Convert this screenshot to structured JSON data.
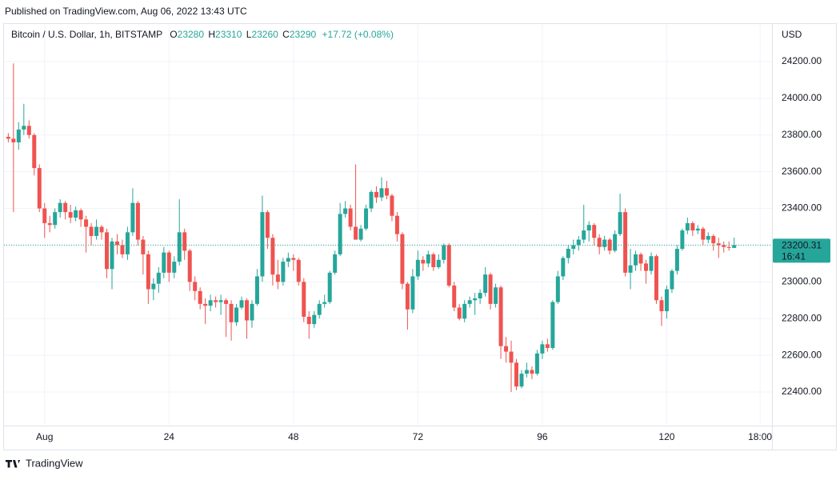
{
  "header": {
    "published": "Published on TradingView.com, Aug 06, 2022 13:43 UTC"
  },
  "chart_data": {
    "type": "candlestick",
    "title": "Bitcoin / U.S. Dollar, 1h, BITSTAMP",
    "ohlc_labels": [
      "O",
      "H",
      "L",
      "C"
    ],
    "change": "+17.72 (+0.08%)",
    "y_axis_label": "USD",
    "countdown": "16:41",
    "up_color": "#26a69a",
    "down_color": "#ef5350",
    "grid": true,
    "xlim": [
      -8.6,
      140.3
    ],
    "ylim": [
      22217,
      24383
    ],
    "xticks": [
      {
        "value": 0,
        "label": "Aug"
      },
      24,
      48,
      72,
      96,
      120,
      {
        "value": 138,
        "label": "18:00"
      }
    ],
    "yticks": [
      {
        "value": 22400,
        "label": "22400.00"
      },
      {
        "value": 22600,
        "label": "22600.00"
      },
      {
        "value": 22800,
        "label": "22800.00"
      },
      {
        "value": 23000,
        "label": "23000.00"
      },
      {
        "value": 23200,
        "label": "23200.00"
      },
      {
        "value": 23400,
        "label": "23400.00"
      },
      {
        "value": 23600,
        "label": "23600.00"
      },
      {
        "value": 23800,
        "label": "23800.00"
      },
      {
        "value": 24000,
        "label": "24000.00"
      },
      {
        "value": 24200,
        "label": "24200.00"
      }
    ],
    "x": [
      -7,
      -6,
      -5,
      -4,
      -3,
      -2,
      -1,
      0,
      1,
      2,
      3,
      4,
      5,
      6,
      7,
      8,
      9,
      10,
      11,
      12,
      13,
      14,
      15,
      16,
      17,
      18,
      19,
      20,
      21,
      22,
      23,
      24,
      25,
      26,
      27,
      28,
      29,
      30,
      31,
      32,
      33,
      34,
      35,
      36,
      37,
      38,
      39,
      40,
      41,
      42,
      43,
      44,
      45,
      46,
      47,
      48,
      49,
      50,
      51,
      52,
      53,
      54,
      55,
      56,
      57,
      58,
      59,
      60,
      61,
      62,
      63,
      64,
      65,
      66,
      67,
      68,
      69,
      70,
      71,
      72,
      73,
      74,
      75,
      76,
      77,
      78,
      79,
      80,
      81,
      82,
      83,
      84,
      85,
      86,
      87,
      88,
      89,
      90,
      91,
      92,
      93,
      94,
      95,
      96,
      97,
      98,
      99,
      100,
      101,
      102,
      103,
      104,
      105,
      106,
      107,
      108,
      109,
      110,
      111,
      112,
      113,
      114,
      115,
      116,
      117,
      118,
      119,
      120,
      121,
      122,
      123,
      124,
      125,
      126,
      127,
      128,
      129,
      130,
      131,
      132,
      133
    ],
    "candles": [
      [
        23790,
        23810,
        23760,
        23780
      ],
      [
        23780,
        24190,
        23380,
        23760
      ],
      [
        23760,
        23870,
        23720,
        23830
      ],
      [
        23830,
        23970,
        23800,
        23850
      ],
      [
        23850,
        23880,
        23780,
        23800
      ],
      [
        23800,
        23810,
        23580,
        23620
      ],
      [
        23620,
        23640,
        23380,
        23400
      ],
      [
        23400,
        23430,
        23240,
        23320
      ],
      [
        23320,
        23360,
        23270,
        23310
      ],
      [
        23310,
        23400,
        23290,
        23380
      ],
      [
        23380,
        23450,
        23350,
        23430
      ],
      [
        23430,
        23440,
        23340,
        23380
      ],
      [
        23380,
        23420,
        23320,
        23350
      ],
      [
        23350,
        23410,
        23330,
        23390
      ],
      [
        23390,
        23400,
        23300,
        23340
      ],
      [
        23340,
        23360,
        23160,
        23300
      ],
      [
        23300,
        23320,
        23200,
        23250
      ],
      [
        23250,
        23340,
        23230,
        23300
      ],
      [
        23300,
        23310,
        23230,
        23270
      ],
      [
        23270,
        23290,
        23020,
        23070
      ],
      [
        23070,
        23240,
        22960,
        23220
      ],
      [
        23220,
        23260,
        23150,
        23200
      ],
      [
        23200,
        23230,
        23130,
        23150
      ],
      [
        23150,
        23300,
        23120,
        23270
      ],
      [
        23270,
        23510,
        23250,
        23430
      ],
      [
        23430,
        23440,
        23200,
        23230
      ],
      [
        23230,
        23250,
        23040,
        23150
      ],
      [
        23150,
        23170,
        22880,
        22960
      ],
      [
        22960,
        23020,
        22900,
        22990
      ],
      [
        22990,
        23080,
        22940,
        23050
      ],
      [
        23050,
        23190,
        23020,
        23160
      ],
      [
        23160,
        23170,
        23000,
        23050
      ],
      [
        23050,
        23140,
        23020,
        23110
      ],
      [
        23110,
        23450,
        23090,
        23270
      ],
      [
        23270,
        23290,
        23120,
        23170
      ],
      [
        23170,
        23180,
        22950,
        23000
      ],
      [
        23000,
        23030,
        22900,
        22950
      ],
      [
        22950,
        22970,
        22850,
        22880
      ],
      [
        22880,
        22910,
        22770,
        22870
      ],
      [
        22870,
        22930,
        22840,
        22900
      ],
      [
        22900,
        22920,
        22860,
        22890
      ],
      [
        22890,
        22930,
        22820,
        22900
      ],
      [
        22900,
        22910,
        22700,
        22880
      ],
      [
        22880,
        22900,
        22680,
        22780
      ],
      [
        22780,
        22880,
        22760,
        22860
      ],
      [
        22860,
        22920,
        22850,
        22900
      ],
      [
        22900,
        22910,
        22690,
        22790
      ],
      [
        22790,
        22900,
        22750,
        22880
      ],
      [
        22880,
        23070,
        22870,
        23030
      ],
      [
        23030,
        23470,
        23000,
        23380
      ],
      [
        23380,
        23390,
        23180,
        23240
      ],
      [
        23240,
        23260,
        22980,
        23040
      ],
      [
        23040,
        23120,
        22960,
        23000
      ],
      [
        23000,
        23130,
        22980,
        23110
      ],
      [
        23110,
        23160,
        23080,
        23130
      ],
      [
        23130,
        23150,
        23060,
        23120
      ],
      [
        23120,
        23130,
        22980,
        23000
      ],
      [
        23000,
        23020,
        22780,
        22810
      ],
      [
        22810,
        22840,
        22690,
        22770
      ],
      [
        22770,
        22840,
        22750,
        22820
      ],
      [
        22820,
        22900,
        22800,
        22880
      ],
      [
        22880,
        22930,
        22860,
        22890
      ],
      [
        22890,
        23060,
        22880,
        23050
      ],
      [
        23050,
        23170,
        23040,
        23150
      ],
      [
        23150,
        23430,
        23140,
        23370
      ],
      [
        23370,
        23440,
        23350,
        23400
      ],
      [
        23400,
        23420,
        23280,
        23300
      ],
      [
        23300,
        23640,
        23230,
        23230
      ],
      [
        23230,
        23310,
        23220,
        23290
      ],
      [
        23290,
        23420,
        23280,
        23400
      ],
      [
        23400,
        23500,
        23380,
        23490
      ],
      [
        23490,
        23520,
        23430,
        23460
      ],
      [
        23460,
        23570,
        23440,
        23510
      ],
      [
        23510,
        23550,
        23450,
        23470
      ],
      [
        23470,
        23480,
        23330,
        23360
      ],
      [
        23360,
        23380,
        23220,
        23260
      ],
      [
        23260,
        23270,
        22960,
        22990
      ],
      [
        22990,
        23000,
        22740,
        22850
      ],
      [
        22850,
        23070,
        22830,
        23030
      ],
      [
        23030,
        23170,
        23010,
        23120
      ],
      [
        23120,
        23140,
        23060,
        23100
      ],
      [
        23100,
        23170,
        23080,
        23150
      ],
      [
        23150,
        23160,
        23060,
        23080
      ],
      [
        23080,
        23150,
        23070,
        23120
      ],
      [
        23120,
        23210,
        23100,
        23200
      ],
      [
        23200,
        23210,
        22970,
        22980
      ],
      [
        22980,
        23000,
        22840,
        22860
      ],
      [
        22860,
        22880,
        22790,
        22800
      ],
      [
        22800,
        22900,
        22780,
        22880
      ],
      [
        22880,
        22920,
        22860,
        22900
      ],
      [
        22900,
        22940,
        22820,
        22910
      ],
      [
        22910,
        22960,
        22880,
        22940
      ],
      [
        22940,
        23080,
        22920,
        23040
      ],
      [
        23040,
        23050,
        22850,
        22880
      ],
      [
        22880,
        22990,
        22860,
        22970
      ],
      [
        22970,
        22980,
        22580,
        22650
      ],
      [
        22650,
        22700,
        22560,
        22620
      ],
      [
        22620,
        22680,
        22400,
        22560
      ],
      [
        22560,
        22580,
        22410,
        22430
      ],
      [
        22430,
        22520,
        22420,
        22500
      ],
      [
        22500,
        22560,
        22480,
        22520
      ],
      [
        22520,
        22540,
        22470,
        22500
      ],
      [
        22500,
        22630,
        22490,
        22610
      ],
      [
        22610,
        22680,
        22580,
        22660
      ],
      [
        22660,
        22690,
        22620,
        22640
      ],
      [
        22640,
        22900,
        22630,
        22890
      ],
      [
        22890,
        23060,
        22880,
        23030
      ],
      [
        23030,
        23140,
        23010,
        23130
      ],
      [
        23130,
        23200,
        23100,
        23180
      ],
      [
        23180,
        23230,
        23150,
        23200
      ],
      [
        23200,
        23250,
        23170,
        23230
      ],
      [
        23230,
        23420,
        23210,
        23280
      ],
      [
        23280,
        23330,
        23220,
        23310
      ],
      [
        23310,
        23320,
        23200,
        23240
      ],
      [
        23240,
        23260,
        23150,
        23190
      ],
      [
        23190,
        23250,
        23170,
        23230
      ],
      [
        23230,
        23240,
        23150,
        23170
      ],
      [
        23170,
        23280,
        23160,
        23260
      ],
      [
        23260,
        23480,
        23250,
        23380
      ],
      [
        23380,
        23400,
        23030,
        23050
      ],
      [
        23050,
        23180,
        22960,
        23090
      ],
      [
        23090,
        23170,
        23060,
        23150
      ],
      [
        23150,
        23160,
        23060,
        23100
      ],
      [
        23100,
        23120,
        22990,
        23060
      ],
      [
        23060,
        23160,
        23040,
        23140
      ],
      [
        23140,
        23150,
        22880,
        22900
      ],
      [
        22900,
        22920,
        22760,
        22840
      ],
      [
        22840,
        22980,
        22800,
        22960
      ],
      [
        22960,
        23070,
        22940,
        23060
      ],
      [
        23060,
        23200,
        23040,
        23180
      ],
      [
        23180,
        23290,
        23170,
        23280
      ],
      [
        23280,
        23350,
        23260,
        23320
      ],
      [
        23320,
        23330,
        23250,
        23280
      ],
      [
        23280,
        23310,
        23260,
        23290
      ],
      [
        23290,
        23300,
        23200,
        23230
      ],
      [
        23230,
        23270,
        23210,
        23250
      ],
      [
        23250,
        23260,
        23170,
        23210
      ],
      [
        23210,
        23240,
        23130,
        23200
      ],
      [
        23200,
        23220,
        23160,
        23190
      ],
      [
        23190,
        23220,
        23170,
        23185.09
      ],
      [
        23185.09,
        23241.29,
        23184.81,
        23200.31
      ]
    ]
  },
  "footer": {
    "brand": "TradingView"
  }
}
